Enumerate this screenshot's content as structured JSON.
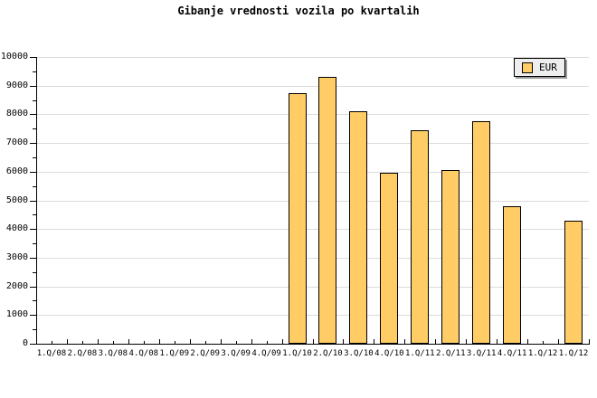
{
  "chart_data": {
    "type": "bar",
    "title": "Gibanje vrednosti vozila po kvartalih",
    "categories": [
      "1.Q/08",
      "2.Q/08",
      "3.Q/08",
      "4.Q/08",
      "1.Q/09",
      "2.Q/09",
      "3.Q/09",
      "4.Q/09",
      "1.Q/10",
      "2.Q/10",
      "3.Q/10",
      "4.Q/10",
      "1.Q/11",
      "2.Q/11",
      "3.Q/11",
      "4.Q/11",
      "1.Q/12",
      "1.Q/12"
    ],
    "series": [
      {
        "name": "EUR",
        "values": [
          null,
          null,
          null,
          null,
          null,
          null,
          null,
          null,
          8750,
          9300,
          8100,
          5950,
          7450,
          6050,
          7750,
          4800,
          null,
          4300
        ]
      }
    ],
    "xlabel": "",
    "ylabel": "",
    "ylim": [
      0,
      10000
    ],
    "ytick_step": 1000,
    "ytick_minor_step": 500,
    "ytick_labels": [
      "0",
      "1000",
      "2000",
      "3000",
      "4000",
      "5000",
      "6000",
      "7000",
      "8000",
      "9000",
      "10000"
    ],
    "grid": "horizontal",
    "legend": {
      "label": "EUR",
      "position": "top-right"
    },
    "colors": {
      "bar_fill": "#ffcc66",
      "bar_border": "#000000",
      "gridline": "#dcdcdc",
      "axis": "#000000",
      "background": "#ffffff",
      "legend_bg": "#eeeeee",
      "legend_shadow": "#999999",
      "text": "#000000"
    }
  }
}
